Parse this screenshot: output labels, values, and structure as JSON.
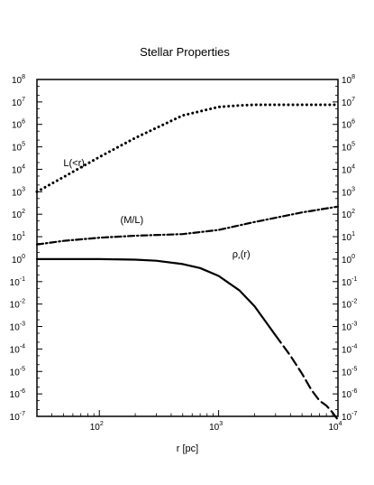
{
  "chart_data": {
    "type": "line",
    "title": "Stellar Properties",
    "xlabel": "r [pc]",
    "ylabel": "",
    "x_scale": "log",
    "y_scale": "log",
    "xlim": [
      30,
      10000
    ],
    "ylim": [
      1e-07,
      100000000.0
    ],
    "x_ticks": [
      {
        "base": "10",
        "exp": "2",
        "value": 100
      },
      {
        "base": "10",
        "exp": "3",
        "value": 1000
      },
      {
        "base": "10",
        "exp": "4",
        "value": 10000
      }
    ],
    "y_ticks": [
      {
        "base": "10",
        "exp": "8",
        "value": 100000000.0
      },
      {
        "base": "10",
        "exp": "7",
        "value": 10000000.0
      },
      {
        "base": "10",
        "exp": "6",
        "value": 1000000.0
      },
      {
        "base": "10",
        "exp": "5",
        "value": 100000.0
      },
      {
        "base": "10",
        "exp": "4",
        "value": 10000.0
      },
      {
        "base": "10",
        "exp": "3",
        "value": 1000.0
      },
      {
        "base": "10",
        "exp": "2",
        "value": 100.0
      },
      {
        "base": "10",
        "exp": "1",
        "value": 10.0
      },
      {
        "base": "10",
        "exp": "0",
        "value": 1
      },
      {
        "base": "10",
        "exp": "-1",
        "value": 0.1
      },
      {
        "base": "10",
        "exp": "-2",
        "value": 0.01
      },
      {
        "base": "10",
        "exp": "-3",
        "value": 0.001
      },
      {
        "base": "10",
        "exp": "-4",
        "value": 0.0001
      },
      {
        "base": "10",
        "exp": "-5",
        "value": 1e-05
      },
      {
        "base": "10",
        "exp": "-6",
        "value": 1e-06
      },
      {
        "base": "10",
        "exp": "-7",
        "value": 1e-07
      }
    ],
    "grid": false,
    "legend": "none",
    "series": [
      {
        "key": "luminosity",
        "style": "dotted",
        "x": [
          30,
          50,
          100,
          200,
          500,
          1000,
          1500,
          2000,
          3000,
          5000,
          10000
        ],
        "y": [
          1000,
          4500,
          35000,
          250000,
          2500000,
          6000000,
          7000000,
          7500000,
          7500000,
          7500000,
          7500000
        ]
      },
      {
        "key": "mass_to_light",
        "style": "dashdot",
        "x": [
          30,
          50,
          100,
          200,
          500,
          1000,
          2000,
          5000,
          10000
        ],
        "y": [
          4.5,
          6.5,
          9,
          11,
          13,
          20,
          45,
          120,
          220
        ]
      },
      {
        "key": "density_solid",
        "style": "solid",
        "x": [
          30,
          100,
          200,
          300,
          500,
          700,
          1000,
          1500,
          2000,
          3000
        ],
        "y": [
          1,
          1,
          0.95,
          0.85,
          0.6,
          0.4,
          0.18,
          0.04,
          0.008,
          0.0004
        ]
      },
      {
        "key": "density_dashed",
        "style": "dashed",
        "x": [
          3000,
          4000,
          5000,
          6000,
          7000,
          8000,
          9000,
          10000
        ],
        "y": [
          0.0004,
          5e-05,
          8e-06,
          1.5e-06,
          5e-07,
          3e-07,
          1.5e-07,
          7e-08
        ]
      }
    ],
    "annotations": [
      {
        "key": "L",
        "text": "L(<r)",
        "x": 50,
        "y": 14000
      },
      {
        "key": "ML",
        "text": "(M/L)",
        "x": 150,
        "y": 40
      },
      {
        "key": "rho",
        "text": "ρ",
        "sub": "*",
        "suffix": "(r)",
        "x": 1300,
        "y": 1.2
      }
    ]
  }
}
